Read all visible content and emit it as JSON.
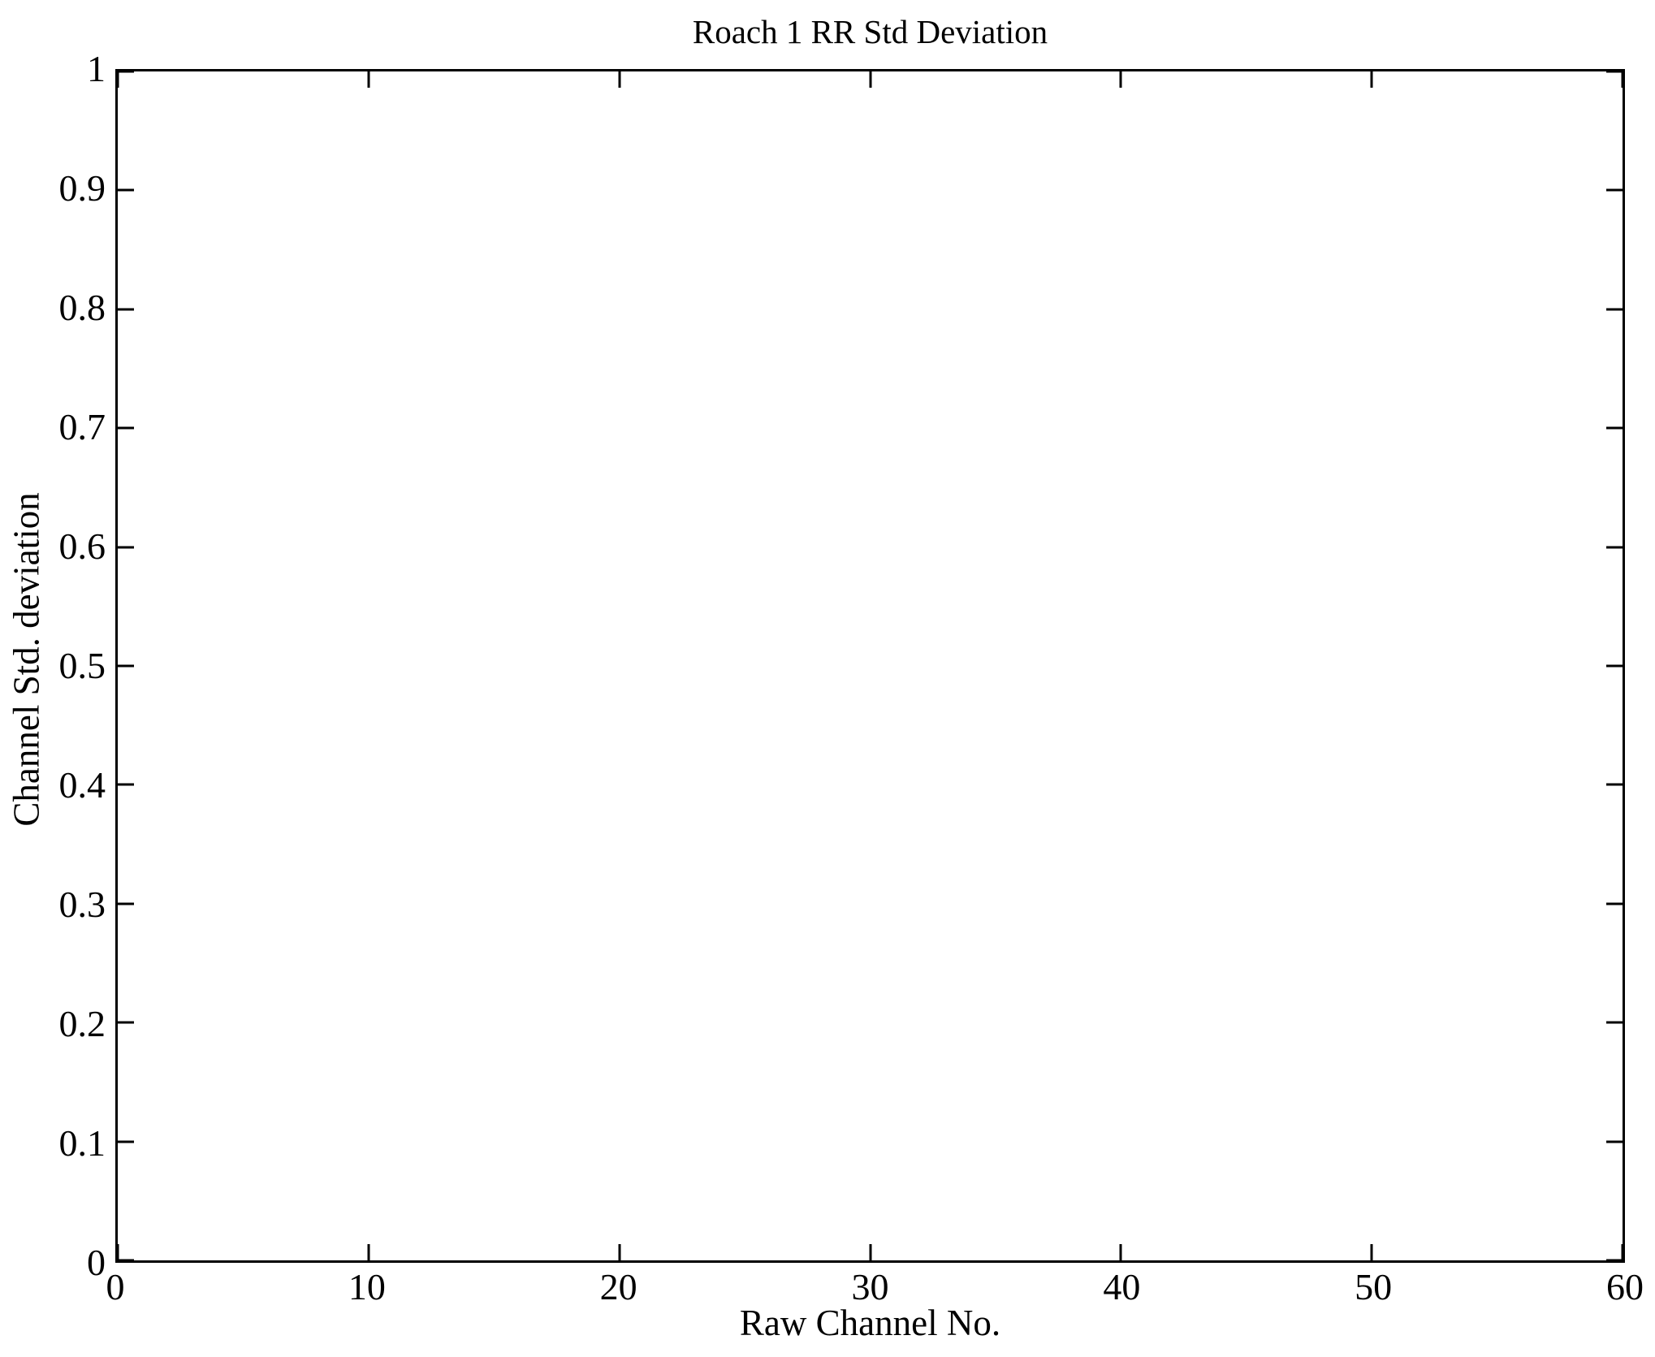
{
  "figure": {
    "background": "#ffffff",
    "axis_color": "#000000",
    "text_color": "#000000"
  },
  "chart_data": {
    "type": "scatter",
    "title": "Roach 1 RR Std Deviation",
    "xlabel": "Raw Channel No.",
    "ylabel": "Channel Std. deviation",
    "xlim": [
      0,
      60
    ],
    "ylim": [
      0,
      1
    ],
    "xticks": [
      0,
      10,
      20,
      30,
      40,
      50,
      60
    ],
    "xtick_labels": [
      "0",
      "10",
      "20",
      "30",
      "40",
      "50",
      "60"
    ],
    "yticks": [
      0,
      0.1,
      0.2,
      0.3,
      0.4,
      0.5,
      0.6,
      0.7,
      0.8,
      0.9,
      1
    ],
    "ytick_labels": [
      "0",
      "0.1",
      "0.2",
      "0.3",
      "0.4",
      "0.5",
      "0.6",
      "0.7",
      "0.8",
      "0.9",
      "1"
    ],
    "series": [],
    "grid": false,
    "legend": null,
    "box": true,
    "tick_direction": "in"
  }
}
